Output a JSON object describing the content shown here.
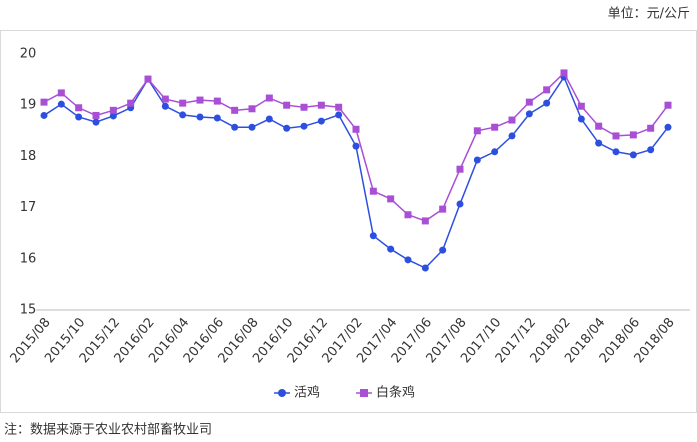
{
  "chart_data": {
    "type": "line",
    "unit": "单位：元/公斤",
    "note": "注：数据来源于农业农村部畜牧业司",
    "categories": [
      "2015/08",
      null,
      "2015/10",
      null,
      "2015/12",
      null,
      "2016/02",
      null,
      "2016/04",
      null,
      "2016/06",
      null,
      "2016/08",
      null,
      "2016/10",
      null,
      "2016/12",
      null,
      "2017/02",
      null,
      "2017/04",
      null,
      "2017/06",
      null,
      "2017/08",
      null,
      "2017/10",
      null,
      "2017/12",
      null,
      "2018/02",
      null,
      "2018/04",
      null,
      "2018/06",
      null,
      "2018/08"
    ],
    "series": [
      {
        "name": "活鸡",
        "color": "#2d4fe0",
        "marker": "circle",
        "values": [
          18.8,
          19.02,
          18.77,
          18.67,
          18.79,
          18.95,
          19.51,
          18.98,
          18.81,
          18.77,
          18.75,
          18.57,
          18.57,
          18.73,
          18.55,
          18.59,
          18.69,
          18.81,
          18.2,
          16.45,
          16.19,
          15.98,
          15.82,
          16.17,
          17.07,
          17.93,
          18.09,
          18.4,
          18.83,
          19.04,
          19.55,
          18.73,
          18.26,
          18.09,
          18.03,
          18.13,
          18.57
        ]
      },
      {
        "name": "白条鸡",
        "color": "#a94fd6",
        "marker": "square",
        "values": [
          19.06,
          19.24,
          18.95,
          18.8,
          18.9,
          19.04,
          19.51,
          19.12,
          19.04,
          19.1,
          19.08,
          18.9,
          18.93,
          19.14,
          19.0,
          18.96,
          19.0,
          18.96,
          18.53,
          17.32,
          17.17,
          16.86,
          16.74,
          16.97,
          17.75,
          18.5,
          18.57,
          18.71,
          19.06,
          19.3,
          19.63,
          18.98,
          18.59,
          18.4,
          18.42,
          18.55,
          19.0
        ]
      }
    ],
    "ylim": [
      15,
      20
    ],
    "yticks": [
      15,
      16,
      17,
      18,
      19,
      20
    ],
    "grid": false,
    "legend": "bottom"
  }
}
